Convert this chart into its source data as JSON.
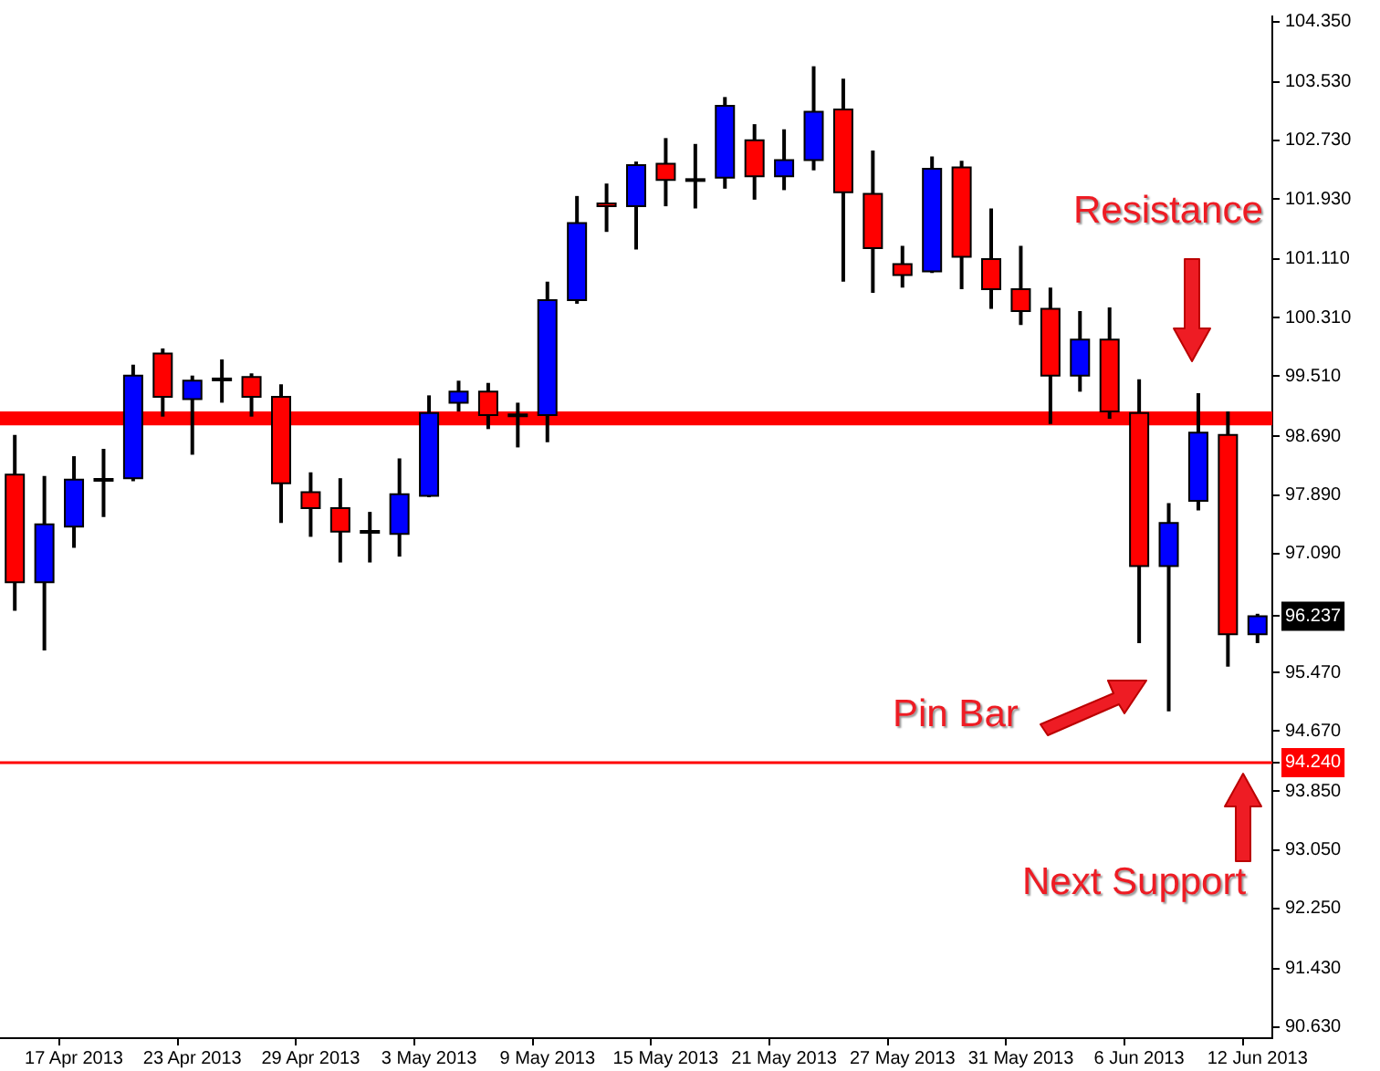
{
  "chart_data": {
    "type": "candlestick",
    "categories": [
      null,
      null,
      "17 Apr 2013",
      null,
      null,
      null,
      "23 Apr 2013",
      null,
      null,
      null,
      "29 Apr 2013",
      null,
      null,
      null,
      "3 May 2013",
      null,
      null,
      null,
      "9 May 2013",
      null,
      null,
      null,
      "15 May 2013",
      null,
      null,
      null,
      "21 May 2013",
      null,
      null,
      null,
      "27 May 2013",
      null,
      null,
      null,
      "31 May 2013",
      null,
      null,
      null,
      "6 Jun 2013",
      null,
      null,
      null,
      "12 Jun 2013"
    ],
    "ohlc": [
      [
        98.17,
        98.71,
        96.31,
        96.7
      ],
      [
        96.7,
        98.15,
        95.77,
        97.49
      ],
      [
        97.46,
        98.42,
        97.17,
        98.1
      ],
      [
        98.1,
        98.52,
        97.59,
        98.11
      ],
      [
        98.12,
        99.67,
        98.08,
        99.52
      ],
      [
        99.82,
        99.89,
        98.96,
        99.23
      ],
      [
        99.2,
        99.52,
        98.44,
        99.45
      ],
      [
        99.47,
        99.74,
        99.15,
        99.48
      ],
      [
        99.5,
        99.55,
        98.96,
        99.23
      ],
      [
        99.23,
        99.4,
        97.51,
        98.05
      ],
      [
        97.93,
        98.2,
        97.32,
        97.71
      ],
      [
        97.71,
        98.12,
        96.97,
        97.39
      ],
      [
        97.39,
        97.66,
        96.97,
        97.4
      ],
      [
        97.36,
        98.39,
        97.05,
        97.9
      ],
      [
        97.88,
        99.25,
        97.86,
        99.01
      ],
      [
        99.15,
        99.45,
        99.03,
        99.3
      ],
      [
        99.3,
        99.42,
        98.79,
        98.98
      ],
      [
        98.98,
        99.15,
        98.54,
        98.99
      ],
      [
        98.98,
        100.8,
        98.61,
        100.55
      ],
      [
        100.55,
        101.97,
        100.5,
        101.6
      ],
      [
        101.87,
        102.14,
        101.48,
        101.83
      ],
      [
        101.83,
        102.44,
        101.24,
        102.39
      ],
      [
        102.41,
        102.76,
        101.83,
        102.19
      ],
      [
        102.19,
        102.68,
        101.8,
        102.2
      ],
      [
        102.22,
        103.32,
        102.07,
        103.2
      ],
      [
        102.73,
        102.95,
        101.92,
        102.24
      ],
      [
        102.24,
        102.88,
        102.05,
        102.46
      ],
      [
        102.46,
        103.74,
        102.32,
        103.12
      ],
      [
        103.15,
        103.57,
        100.8,
        102.02
      ],
      [
        102.0,
        102.59,
        100.65,
        101.26
      ],
      [
        101.04,
        101.29,
        100.72,
        100.89
      ],
      [
        100.94,
        102.51,
        100.92,
        102.34
      ],
      [
        102.36,
        102.45,
        100.7,
        101.14
      ],
      [
        101.11,
        101.8,
        100.43,
        100.7
      ],
      [
        100.7,
        101.29,
        100.21,
        100.4
      ],
      [
        100.43,
        100.72,
        98.86,
        99.52
      ],
      [
        99.52,
        100.4,
        99.3,
        100.01
      ],
      [
        100.01,
        100.45,
        98.93,
        99.03
      ],
      [
        99.01,
        99.47,
        95.87,
        96.92
      ],
      [
        96.92,
        97.78,
        94.94,
        97.51
      ],
      [
        97.81,
        99.28,
        97.68,
        98.74
      ],
      [
        98.71,
        99.03,
        95.55,
        95.99
      ],
      [
        95.99,
        96.27,
        95.87,
        96.237
      ]
    ],
    "colors": [
      "#ff0000",
      "#0000ff",
      "#0000ff",
      "#0000ff",
      "#0000ff",
      "#ff0000",
      "#0000ff",
      "#0000ff",
      "#ff0000",
      "#ff0000",
      "#ff0000",
      "#ff0000",
      "#0000ff",
      "#0000ff",
      "#0000ff",
      "#0000ff",
      "#ff0000",
      "#0000ff",
      "#0000ff",
      "#0000ff",
      "#ff0000",
      "#0000ff",
      "#ff0000",
      "#0000ff",
      "#0000ff",
      "#ff0000",
      "#0000ff",
      "#0000ff",
      "#ff0000",
      "#ff0000",
      "#ff0000",
      "#0000ff",
      "#ff0000",
      "#ff0000",
      "#ff0000",
      "#ff0000",
      "#0000ff",
      "#ff0000",
      "#ff0000",
      "#0000ff",
      "#0000ff",
      "#ff0000",
      "#0000ff"
    ],
    "ylim": [
      90.48,
      104.42
    ],
    "yticks": [
      {
        "value": 104.35,
        "label": "104.350"
      },
      {
        "value": 103.53,
        "label": "103.530"
      },
      {
        "value": 102.73,
        "label": "102.730"
      },
      {
        "value": 101.93,
        "label": "101.930"
      },
      {
        "value": 101.11,
        "label": "101.110"
      },
      {
        "value": 100.31,
        "label": "100.310"
      },
      {
        "value": 99.51,
        "label": "99.510"
      },
      {
        "value": 98.69,
        "label": "98.690"
      },
      {
        "value": 97.89,
        "label": "97.890"
      },
      {
        "value": 97.09,
        "label": "97.090"
      },
      {
        "value": 96.237,
        "label": "96.237"
      },
      {
        "value": 95.47,
        "label": "95.470"
      },
      {
        "value": 94.67,
        "label": "94.670"
      },
      {
        "value": 94.24,
        "label": "94.240"
      },
      {
        "value": 93.85,
        "label": "93.850"
      },
      {
        "value": 93.05,
        "label": "93.050"
      },
      {
        "value": 92.25,
        "label": "92.250"
      },
      {
        "value": 91.43,
        "label": "91.430"
      },
      {
        "value": 90.63,
        "label": "90.630"
      }
    ],
    "bands": [
      {
        "axis": "y",
        "from": 98.84,
        "to": 99.03,
        "label": "Resistance",
        "color": "#ff0000"
      }
    ],
    "ref_lines": [
      {
        "axis": "y",
        "value": 94.24,
        "label": "Next Support",
        "color": "#ff0000"
      }
    ],
    "annotations": [
      "Pin Bar"
    ],
    "grid": false,
    "legend": false
  }
}
